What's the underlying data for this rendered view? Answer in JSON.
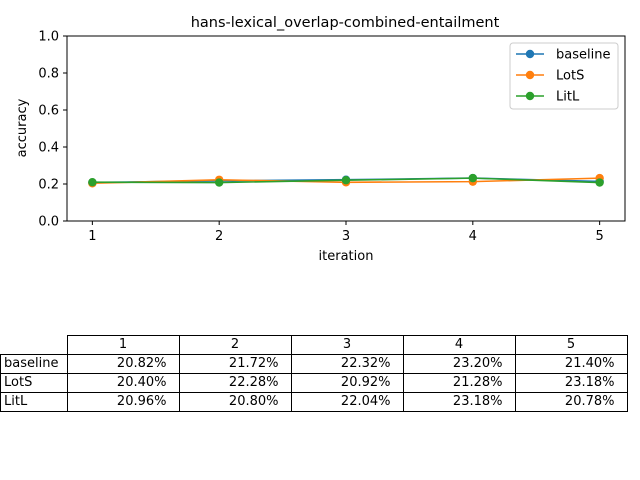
{
  "chart_data": {
    "type": "line",
    "title": "hans-lexical_overlap-combined-entailment",
    "xlabel": "iteration",
    "ylabel": "accuracy",
    "x": [
      1,
      2,
      3,
      4,
      5
    ],
    "xticks": [
      "1",
      "2",
      "3",
      "4",
      "5"
    ],
    "yticks": [
      "0.0",
      "0.2",
      "0.4",
      "0.6",
      "0.8",
      "1.0"
    ],
    "ylim": [
      0,
      1
    ],
    "legend_position": "top-right",
    "grid": false,
    "series": [
      {
        "name": "baseline",
        "color": "#1f77b4",
        "values": [
          0.2082,
          0.2172,
          0.2232,
          0.232,
          0.214
        ]
      },
      {
        "name": "LotS",
        "color": "#ff7f0e",
        "values": [
          0.204,
          0.2228,
          0.2092,
          0.2128,
          0.2318
        ]
      },
      {
        "name": "LitL",
        "color": "#2ca02c",
        "values": [
          0.2096,
          0.208,
          0.2204,
          0.2318,
          0.2078
        ]
      }
    ]
  },
  "table": {
    "columns": [
      "1",
      "2",
      "3",
      "4",
      "5"
    ],
    "rows": [
      {
        "label": "baseline",
        "cells": [
          "20.82%",
          "21.72%",
          "22.32%",
          "23.20%",
          "21.40%"
        ]
      },
      {
        "label": "LotS",
        "cells": [
          "20.40%",
          "22.28%",
          "20.92%",
          "21.28%",
          "23.18%"
        ]
      },
      {
        "label": "LitL",
        "cells": [
          "20.96%",
          "20.80%",
          "22.04%",
          "23.18%",
          "20.78%"
        ]
      }
    ]
  }
}
